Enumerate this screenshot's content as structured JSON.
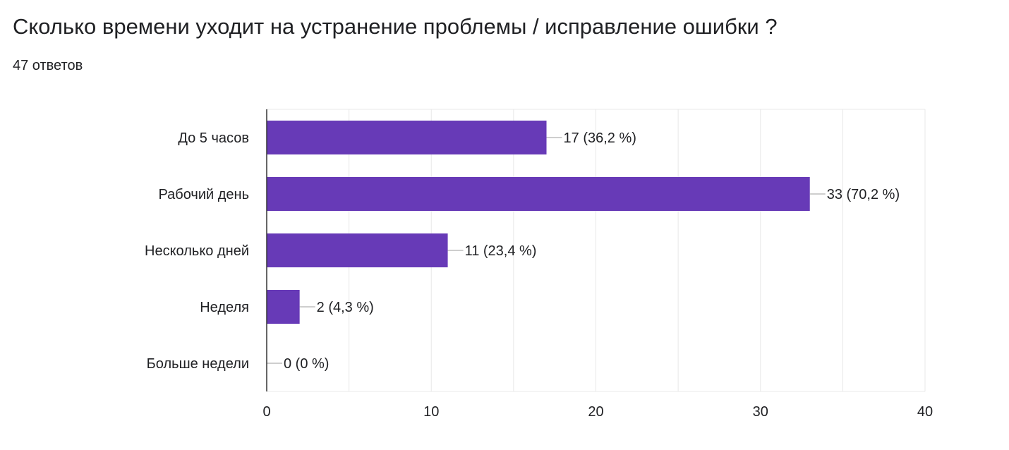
{
  "title": "Сколько времени уходит на устранение проблемы / исправление ошибки ?",
  "response_count": "47 ответов",
  "colors": {
    "bar": "#673ab7",
    "grid": "#e8e8e8",
    "axis": "#333333",
    "leader": "#9e9e9e",
    "text": "#202124"
  },
  "chart_data": {
    "type": "bar",
    "orientation": "horizontal",
    "categories": [
      "До 5 часов",
      "Рабочий день",
      "Несколько дней",
      "Неделя",
      "Больше недели"
    ],
    "values": [
      17,
      33,
      11,
      2,
      0
    ],
    "data_labels": [
      "17 (36,2 %)",
      "33 (70,2 %)",
      "11 (23,4 %)",
      "2 (4,3 %)",
      "0 (0 %)"
    ],
    "xlim": [
      0,
      40
    ],
    "xticks": [
      0,
      10,
      20,
      30,
      40
    ],
    "xtick_labels": [
      "0",
      "10",
      "20",
      "30",
      "40"
    ],
    "grid": true
  }
}
